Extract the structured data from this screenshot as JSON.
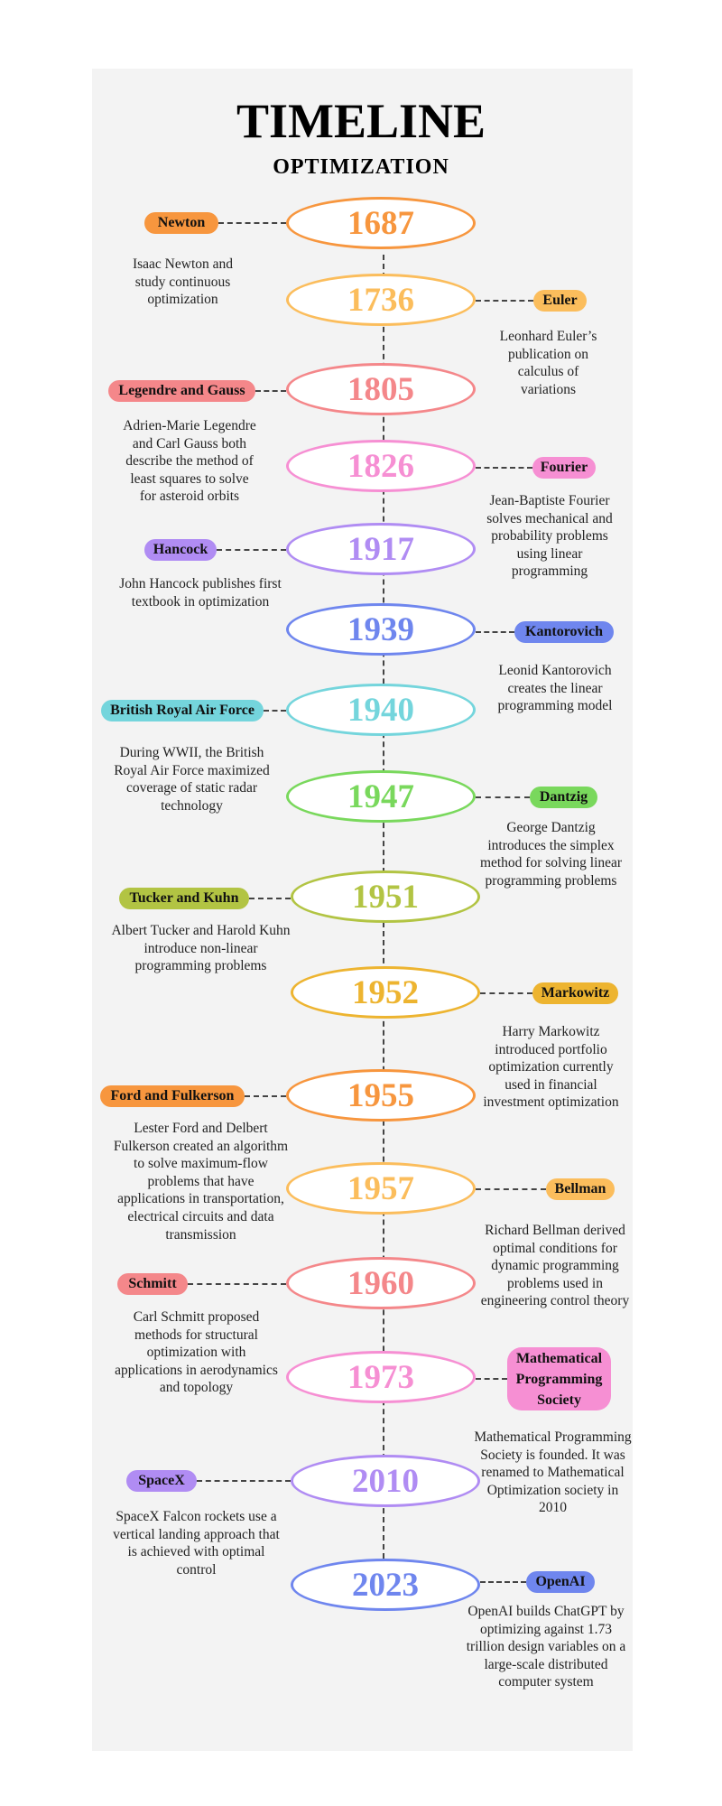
{
  "header": {
    "title": "TIMELINE",
    "subtitle": "OPTIMIZATION"
  },
  "events": [
    {
      "year": "1687",
      "label": "Newton",
      "description": "Isaac Newton and study continuous optimization",
      "side": "left",
      "color": "#f7963e"
    },
    {
      "year": "1736",
      "label": "Euler",
      "description": "Leonhard Euler’s publication on calculus of variations",
      "side": "right",
      "color": "#fbbd5c"
    },
    {
      "year": "1805",
      "label": "Legendre and Gauss",
      "description": "Adrien-Marie Legendre and Carl Gauss both describe the method of least squares to solve for asteroid orbits",
      "side": "left",
      "color": "#f4878a"
    },
    {
      "year": "1826",
      "label": "Fourier",
      "description": "Jean-Baptiste Fourier solves mechanical and probability problems using linear programming",
      "side": "right",
      "color": "#f68fd3"
    },
    {
      "year": "1917",
      "label": "Hancock",
      "description": "John Hancock publishes first textbook in optimization",
      "side": "left",
      "color": "#b08cf3"
    },
    {
      "year": "1939",
      "label": "Kantorovich",
      "description": "Leonid Kantorovich creates the linear programming model",
      "side": "right",
      "color": "#6f86ee"
    },
    {
      "year": "1940",
      "label": "British Royal Air Force",
      "description": "During WWII, the British Royal Air Force maximized coverage of static radar technology",
      "side": "left",
      "color": "#74d5dc"
    },
    {
      "year": "1947",
      "label": "Dantzig",
      "description": "George Dantzig introduces the simplex method for solving linear programming problems",
      "side": "right",
      "color": "#79d85c"
    },
    {
      "year": "1951",
      "label": "Tucker and Kuhn",
      "description": "Albert Tucker and Harold Kuhn introduce non-linear programming problems",
      "side": "left",
      "color": "#b2c443"
    },
    {
      "year": "1952",
      "label": "Markowitz",
      "description": "Harry Markowitz introduced portfolio optimization currently used in financial investment optimization",
      "side": "right",
      "color": "#edb430"
    },
    {
      "year": "1955",
      "label": "Ford and Fulkerson",
      "description": "Lester Ford and Delbert Fulkerson created an algorithm to solve maximum-flow problems that have applications in transportation, electrical circuits and data transmission",
      "side": "left",
      "color": "#f7963e"
    },
    {
      "year": "1957",
      "label": "Bellman",
      "description": "Richard Bellman derived optimal conditions for dynamic programming problems used in engineering control theory",
      "side": "right",
      "color": "#fbbd5c"
    },
    {
      "year": "1960",
      "label": "Schmitt",
      "description": "Carl Schmitt proposed methods for structural optimization with applications in aerodynamics and topology",
      "side": "left",
      "color": "#f4878a"
    },
    {
      "year": "1973",
      "label": "Mathematical Programming Society",
      "description": "Mathematical Programming Society is founded. It was renamed to Mathematical Optimization society in 2010",
      "side": "right",
      "color": "#f68fd3"
    },
    {
      "year": "2010",
      "label": "SpaceX",
      "description": "SpaceX Falcon rockets use a vertical landing approach that is achieved with optimal control",
      "side": "left",
      "color": "#b08cf3"
    },
    {
      "year": "2023",
      "label": "OpenAI",
      "description": "OpenAI builds ChatGPT by optimizing against 1.73 trillion design variables on a large-scale distributed computer system",
      "side": "right",
      "color": "#6f86ee"
    }
  ]
}
